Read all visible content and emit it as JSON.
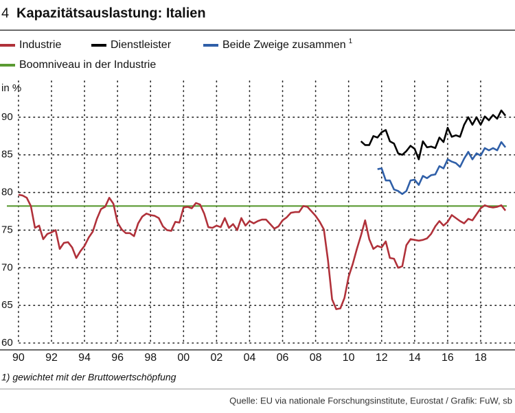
{
  "chart_data": {
    "type": "line",
    "chart_number": "4",
    "title": "Kapazitätsauslastung: Italien",
    "y_unit": "in %",
    "footnote": "1) gewichtet mit der Bruttowertschöpfung",
    "source": "Quelle: EU via nationale Forschungsinstitute, Eurostat / Grafik: FuW, sb",
    "xlim": [
      1988.88,
      2020.08
    ],
    "ylim": [
      60,
      95
    ],
    "xticks": [
      {
        "value": 1990,
        "label": "90"
      },
      {
        "value": 1992,
        "label": "92"
      },
      {
        "value": 1994,
        "label": "94"
      },
      {
        "value": 1996,
        "label": "96"
      },
      {
        "value": 1998,
        "label": "98"
      },
      {
        "value": 2000,
        "label": "00"
      },
      {
        "value": 2002,
        "label": "02"
      },
      {
        "value": 2004,
        "label": "04"
      },
      {
        "value": 2006,
        "label": "06"
      },
      {
        "value": 2008,
        "label": "08"
      },
      {
        "value": 2010,
        "label": "10"
      },
      {
        "value": 2012,
        "label": "12"
      },
      {
        "value": 2014,
        "label": "14"
      },
      {
        "value": 2016,
        "label": "16"
      },
      {
        "value": 2018,
        "label": "18"
      }
    ],
    "yticks": [
      60,
      65,
      70,
      75,
      80,
      85,
      90
    ],
    "grid": true,
    "series": [
      {
        "name": "Industrie",
        "color": "#b0313a",
        "x": [
          1990,
          1990.25,
          1990.5,
          1990.75,
          1991,
          1991.25,
          1991.5,
          1991.75,
          1992,
          1992.25,
          1992.5,
          1992.75,
          1993,
          1993.25,
          1993.5,
          1993.75,
          1994,
          1994.25,
          1994.5,
          1994.75,
          1995,
          1995.25,
          1995.5,
          1995.75,
          1996,
          1996.25,
          1996.5,
          1996.75,
          1997,
          1997.25,
          1997.5,
          1997.75,
          1998,
          1998.25,
          1998.5,
          1998.75,
          1999,
          1999.25,
          1999.5,
          1999.75,
          2000,
          2000.25,
          2000.5,
          2000.75,
          2001,
          2001.25,
          2001.5,
          2001.75,
          2002,
          2002.25,
          2002.5,
          2002.75,
          2003,
          2003.25,
          2003.5,
          2003.75,
          2004,
          2004.25,
          2004.5,
          2004.75,
          2005,
          2005.25,
          2005.5,
          2005.75,
          2006,
          2006.25,
          2006.5,
          2006.75,
          2007,
          2007.25,
          2007.5,
          2007.75,
          2008,
          2008.25,
          2008.5,
          2008.75,
          2009,
          2009.25,
          2009.5,
          2009.75,
          2010,
          2010.25,
          2010.5,
          2010.75,
          2011,
          2011.25,
          2011.5,
          2011.75,
          2012,
          2012.25,
          2012.5,
          2012.75,
          2013,
          2013.25,
          2013.5,
          2013.75,
          2014,
          2014.25,
          2014.5,
          2014.75,
          2015,
          2015.25,
          2015.5,
          2015.75,
          2016,
          2016.25,
          2016.5,
          2016.75,
          2017,
          2017.25,
          2017.5,
          2017.75,
          2018,
          2018.25,
          2018.5,
          2018.75,
          2019,
          2019.25,
          2019.5
        ],
        "values": [
          79.7,
          79.6,
          79.3,
          78.2,
          75.3,
          75.6,
          73.8,
          74.5,
          74.7,
          75.0,
          72.5,
          73.3,
          73.4,
          72.7,
          71.3,
          72.2,
          72.9,
          74.0,
          74.8,
          76.5,
          77.8,
          78.1,
          79.3,
          78.5,
          76.0,
          75.1,
          74.6,
          74.6,
          74.2,
          75.9,
          76.8,
          77.2,
          77.0,
          76.9,
          76.6,
          75.5,
          75.0,
          74.9,
          76.1,
          76.0,
          78.0,
          78.1,
          77.9,
          78.6,
          78.4,
          77.2,
          75.4,
          75.3,
          75.6,
          75.4,
          76.6,
          75.3,
          75.8,
          75.0,
          76.6,
          75.6,
          76.2,
          75.9,
          76.2,
          76.4,
          76.4,
          75.8,
          75.2,
          75.5,
          76.3,
          76.7,
          77.3,
          77.4,
          77.4,
          78.2,
          78.1,
          77.5,
          76.9,
          76.1,
          75.1,
          71.0,
          65.8,
          64.5,
          64.6,
          66.0,
          68.8,
          70.5,
          72.5,
          74.3,
          76.3,
          73.8,
          72.5,
          72.9,
          72.7,
          73.5,
          71.3,
          71.2,
          70.0,
          70.2,
          73.0,
          73.8,
          73.7,
          73.6,
          73.7,
          73.9,
          74.5,
          75.5,
          76.2,
          75.6,
          76.1,
          77.0,
          76.6,
          76.2,
          75.9,
          76.5,
          76.3,
          77.1,
          77.9,
          78.3,
          78.1,
          78.0,
          78.1,
          78.3,
          77.6
        ]
      },
      {
        "name": "Dienstleister",
        "color": "#000000",
        "x": [
          2010.75,
          2011,
          2011.25,
          2011.5,
          2011.75,
          2012,
          2012.25,
          2012.5,
          2012.75,
          2013,
          2013.25,
          2013.5,
          2013.75,
          2014,
          2014.25,
          2014.5,
          2014.75,
          2015,
          2015.25,
          2015.5,
          2015.75,
          2016,
          2016.25,
          2016.5,
          2016.75,
          2017,
          2017.25,
          2017.5,
          2017.75,
          2018,
          2018.25,
          2018.5,
          2018.75,
          2019,
          2019.25,
          2019.5
        ],
        "values": [
          86.8,
          86.3,
          86.3,
          87.5,
          87.3,
          88.0,
          88.3,
          86.8,
          86.5,
          85.2,
          85.0,
          85.5,
          86.2,
          85.8,
          84.4,
          86.8,
          86.0,
          86.1,
          85.9,
          87.3,
          86.7,
          88.6,
          87.4,
          87.6,
          87.4,
          89.0,
          90.0,
          89.0,
          90.0,
          89.0,
          90.1,
          89.6,
          90.3,
          89.8,
          90.9,
          90.2
        ]
      },
      {
        "name": "Beide Zweige zusammen",
        "note_marker": "1",
        "color": "#2f5fa8",
        "x": [
          2011.75,
          2012,
          2012.25,
          2012.5,
          2012.75,
          2013,
          2013.25,
          2013.5,
          2013.75,
          2014,
          2014.25,
          2014.5,
          2014.75,
          2015,
          2015.25,
          2015.5,
          2015.75,
          2016,
          2016.25,
          2016.5,
          2016.75,
          2017,
          2017.25,
          2017.5,
          2017.75,
          2018,
          2018.25,
          2018.5,
          2018.75,
          2019,
          2019.25,
          2019.5
        ],
        "values": [
          83.1,
          83.2,
          81.6,
          81.6,
          80.4,
          80.2,
          79.8,
          80.2,
          81.6,
          81.7,
          81.0,
          82.2,
          81.9,
          82.3,
          82.4,
          83.5,
          83.2,
          84.4,
          84.1,
          83.9,
          83.4,
          84.5,
          85.4,
          84.4,
          85.2,
          84.9,
          85.9,
          85.6,
          85.9,
          85.6,
          86.7,
          86.0
        ]
      }
    ],
    "reference_line": {
      "name": "Boomniveau in der Industrie",
      "color": "#5a9a32",
      "value": 78.2
    }
  }
}
